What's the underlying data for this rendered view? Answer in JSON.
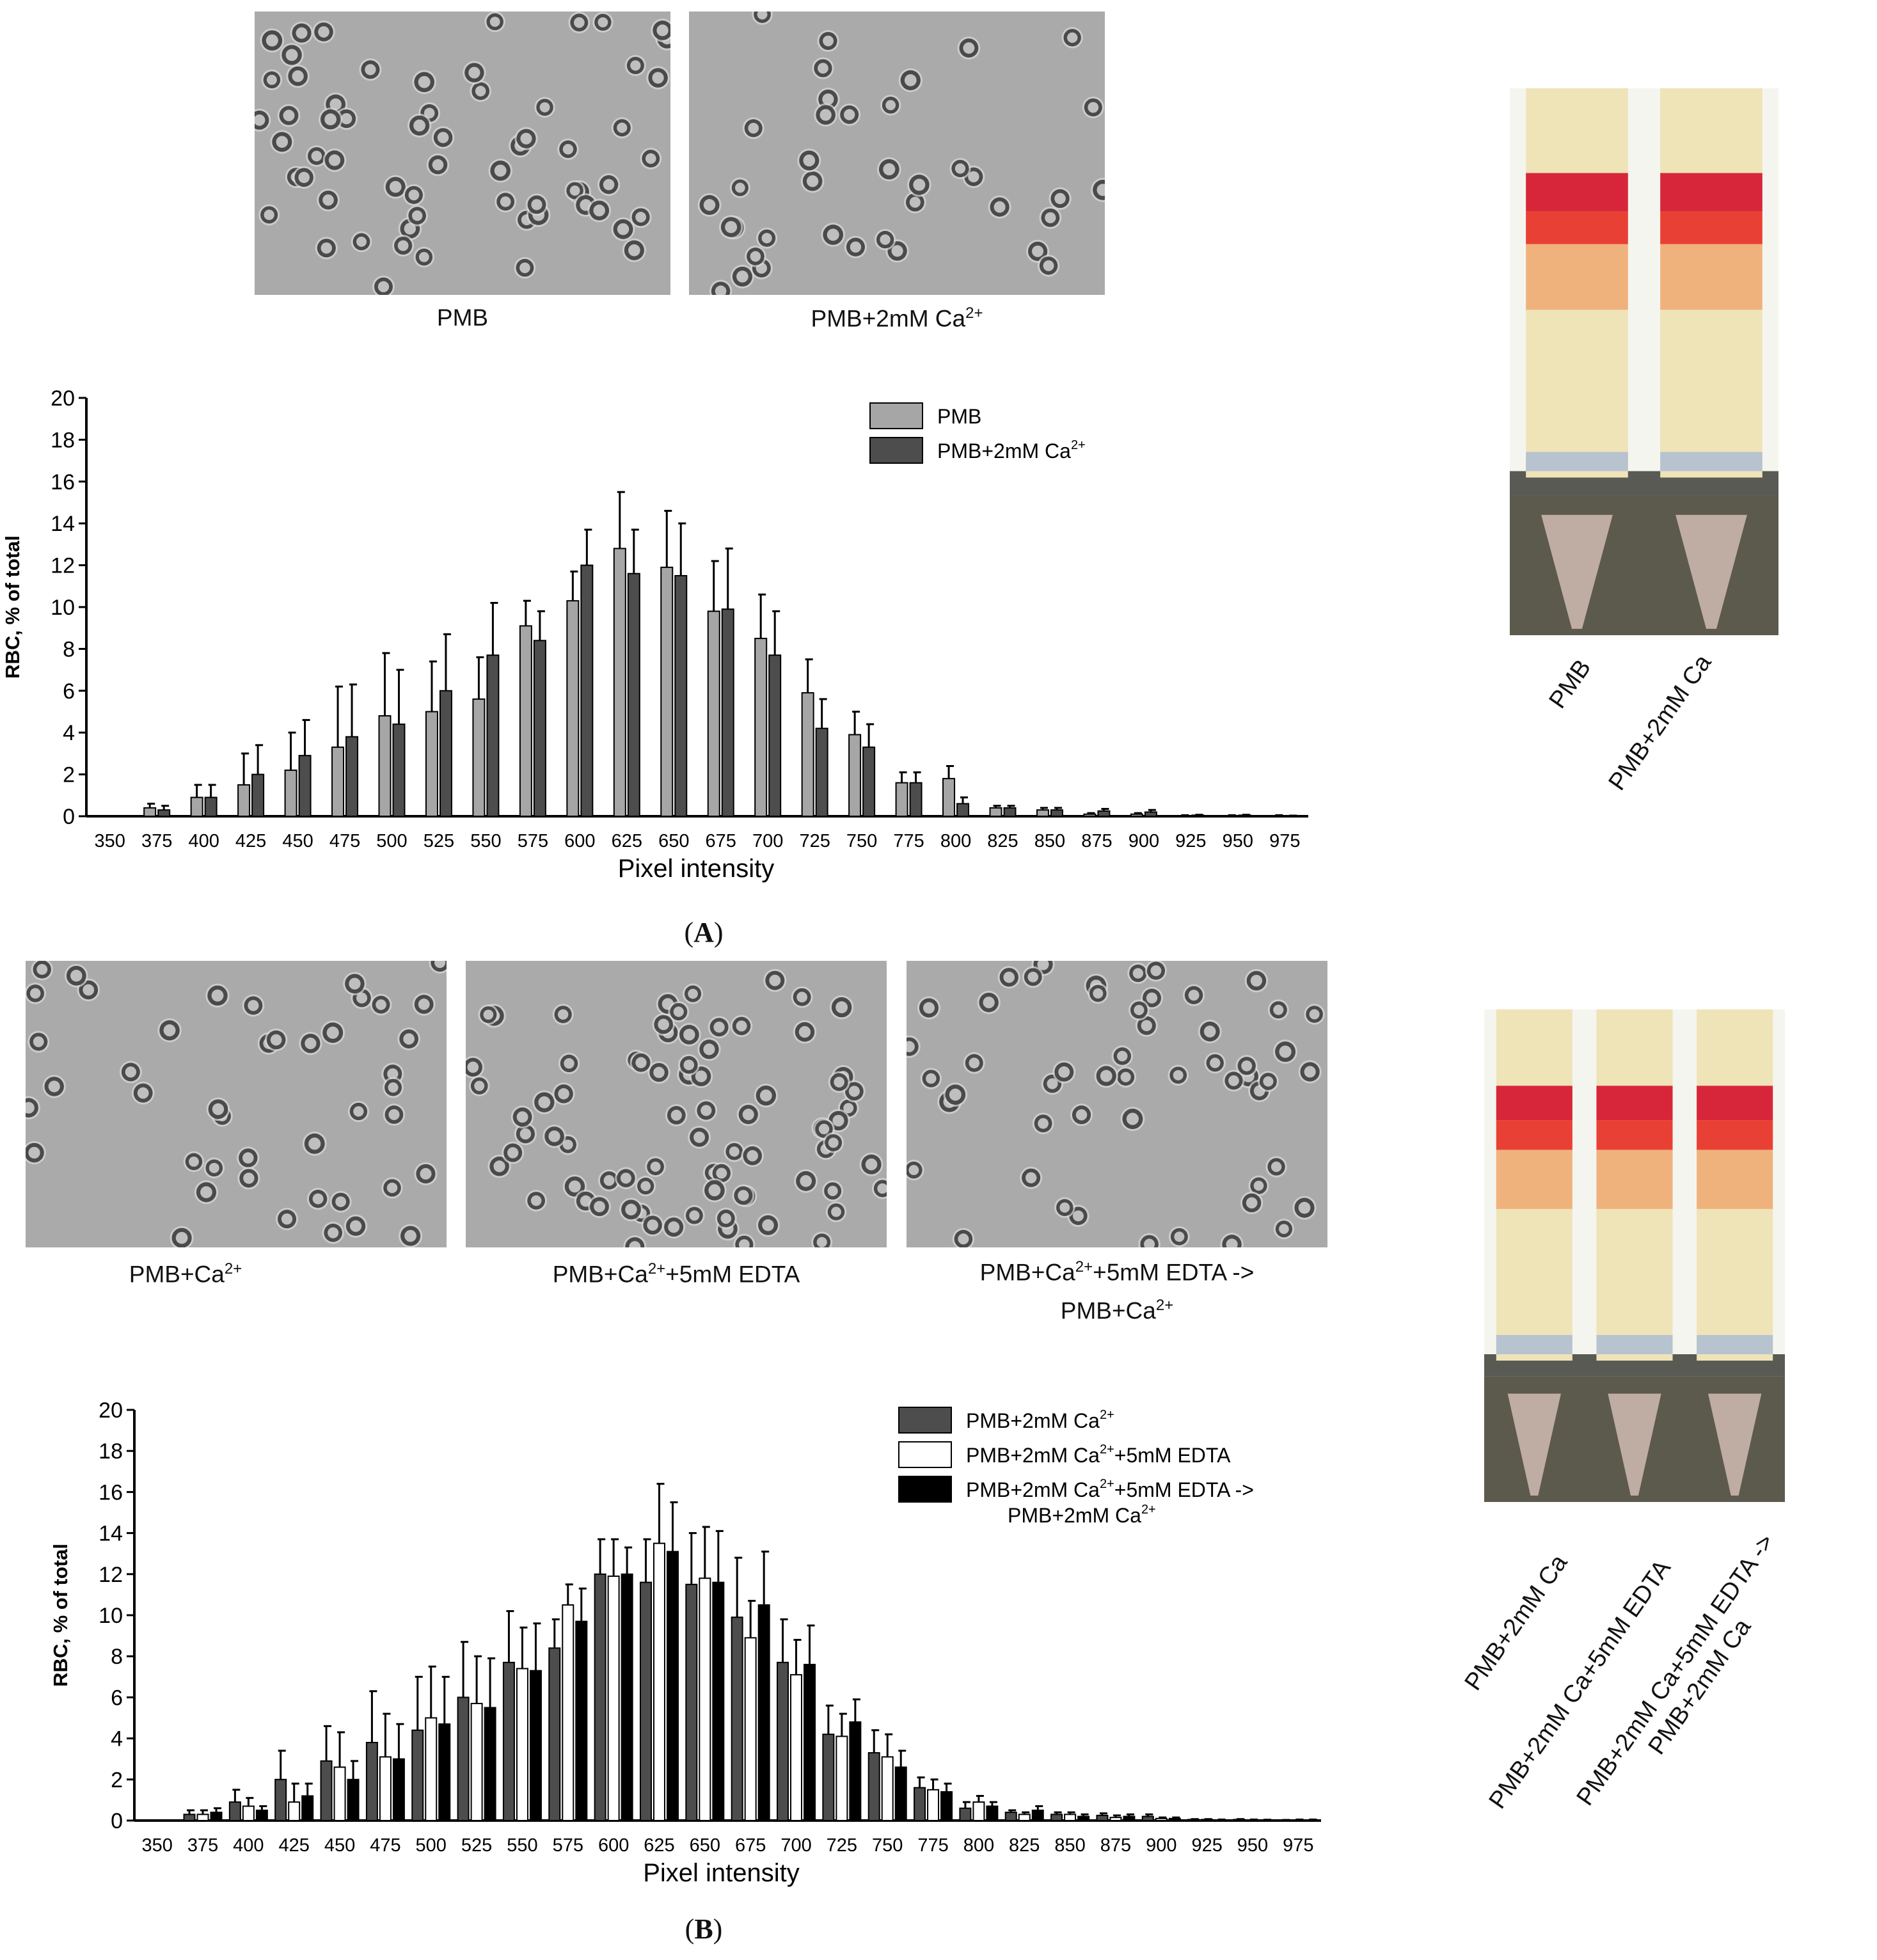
{
  "panel_a": {
    "label": "A",
    "micrographs": [
      {
        "caption": "PMB",
        "cells": 62
      },
      {
        "caption": "PMB+2mM Ca",
        "caption_sup": "2+",
        "cells": 38
      }
    ],
    "tube_labels": [
      "PMB",
      "PMB+2mM Ca"
    ]
  },
  "panel_b": {
    "label": "B",
    "micrographs": [
      {
        "caption": "PMB+Ca",
        "caption_sup": "2+",
        "caption_rest": "",
        "cells": 44
      },
      {
        "caption": "PMB+Ca",
        "caption_sup": "2+",
        "caption_rest": "+5mM EDTA",
        "cells": 78
      },
      {
        "caption": "PMB+Ca",
        "caption_sup": "2+",
        "caption_rest": "+5mM EDTA ->",
        "caption_line2": "PMB+Ca",
        "caption_line2_sup": "2+",
        "cells": 52
      }
    ],
    "tube_labels": [
      "PMB+2mM Ca",
      "PMB+2mM Ca+5mM EDTA",
      "PMB+2mM Ca+5mM EDTA ->\nPMB+2mM Ca"
    ]
  },
  "colors": {
    "light_gray": "#a6a6a6",
    "dark_gray": "#4d4d4d",
    "white": "#ffffff",
    "black": "#000000",
    "background": "#aaaaaa",
    "blood_red": "#e8231e"
  },
  "chart_data": [
    {
      "type": "bar",
      "title": "",
      "xlabel": "Pixel intensity",
      "ylabel": "RBC, % of total",
      "ylim": [
        0,
        20
      ],
      "yticks": [
        0,
        2,
        4,
        6,
        8,
        10,
        12,
        14,
        16,
        18,
        20
      ],
      "legend_position": "top-right",
      "categories": [
        "350",
        "375",
        "400",
        "425",
        "450",
        "475",
        "500",
        "525",
        "550",
        "575",
        "600",
        "625",
        "650",
        "675",
        "700",
        "725",
        "750",
        "775",
        "800",
        "825",
        "850",
        "875",
        "900",
        "925",
        "950",
        "975"
      ],
      "series": [
        {
          "name": "PMB",
          "color": "#a6a6a6",
          "values": [
            0,
            0.4,
            0.9,
            1.5,
            2.2,
            3.3,
            4.8,
            5.0,
            5.6,
            9.1,
            10.3,
            12.8,
            11.9,
            9.8,
            8.5,
            5.9,
            3.9,
            1.6,
            1.8,
            0.4,
            0.3,
            0.1,
            0.1,
            0.03,
            0.03,
            0.03
          ],
          "errors": [
            0,
            0.2,
            0.6,
            1.5,
            1.8,
            2.9,
            3.0,
            2.4,
            2.0,
            1.2,
            1.4,
            2.7,
            2.7,
            2.4,
            2.1,
            1.6,
            1.1,
            0.5,
            0.6,
            0.1,
            0.1,
            0.05,
            0.05,
            0.02,
            0.02,
            0.02
          ]
        },
        {
          "name": "PMB+2mM Ca",
          "name_sup": "2+",
          "color": "#4d4d4d",
          "values": [
            0,
            0.3,
            0.9,
            2.0,
            2.9,
            3.8,
            4.4,
            6.0,
            7.7,
            8.4,
            12.0,
            11.6,
            11.5,
            9.9,
            7.7,
            4.2,
            3.3,
            1.6,
            0.6,
            0.4,
            0.3,
            0.25,
            0.2,
            0.05,
            0.05,
            0.02
          ],
          "errors": [
            0,
            0.2,
            0.6,
            1.4,
            1.7,
            2.5,
            2.6,
            2.7,
            2.5,
            1.4,
            1.7,
            2.1,
            2.5,
            2.9,
            2.1,
            1.4,
            1.1,
            0.5,
            0.3,
            0.1,
            0.1,
            0.1,
            0.1,
            0.02,
            0.02,
            0.01
          ]
        }
      ]
    },
    {
      "type": "bar",
      "title": "",
      "xlabel": "Pixel intensity",
      "ylabel": "RBC, % of total",
      "ylim": [
        0,
        20
      ],
      "yticks": [
        0,
        2,
        4,
        6,
        8,
        10,
        12,
        14,
        16,
        18,
        20
      ],
      "legend_position": "top-right",
      "categories": [
        "350",
        "375",
        "400",
        "425",
        "450",
        "475",
        "500",
        "525",
        "550",
        "575",
        "600",
        "625",
        "650",
        "675",
        "700",
        "725",
        "750",
        "775",
        "800",
        "825",
        "850",
        "875",
        "900",
        "925",
        "950",
        "975"
      ],
      "series": [
        {
          "name": "PMB+2mM Ca",
          "name_sup": "2+",
          "name_rest": "",
          "color": "#4d4d4d",
          "values": [
            0,
            0.3,
            0.9,
            2.0,
            2.9,
            3.8,
            4.4,
            6.0,
            7.7,
            8.4,
            12.0,
            11.6,
            11.5,
            9.9,
            7.7,
            4.2,
            3.3,
            1.6,
            0.6,
            0.4,
            0.3,
            0.25,
            0.2,
            0.05,
            0.05,
            0.02
          ],
          "errors": [
            0,
            0.2,
            0.6,
            1.4,
            1.7,
            2.5,
            2.6,
            2.7,
            2.5,
            1.4,
            1.7,
            2.1,
            2.5,
            2.9,
            2.1,
            1.4,
            1.1,
            0.5,
            0.3,
            0.1,
            0.1,
            0.1,
            0.1,
            0.02,
            0.02,
            0.01
          ]
        },
        {
          "name": "PMB+2mM Ca",
          "name_sup": "2+",
          "name_rest": "+5mM EDTA",
          "color": "#ffffff",
          "values": [
            0,
            0.3,
            0.7,
            0.9,
            2.6,
            3.1,
            5.0,
            5.7,
            7.4,
            10.5,
            11.9,
            13.5,
            11.8,
            8.9,
            7.1,
            4.1,
            3.1,
            1.5,
            0.9,
            0.3,
            0.3,
            0.15,
            0.1,
            0.05,
            0.03,
            0.03
          ],
          "errors": [
            0,
            0.2,
            0.4,
            0.9,
            1.7,
            2.1,
            2.5,
            2.3,
            2.0,
            1.0,
            1.8,
            2.9,
            2.5,
            1.8,
            1.7,
            1.1,
            1.1,
            0.5,
            0.3,
            0.1,
            0.1,
            0.1,
            0.05,
            0.02,
            0.02,
            0.02
          ]
        },
        {
          "name": "PMB+2mM Ca",
          "name_sup": "2+",
          "name_rest": "+5mM EDTA ->",
          "name_line2": "PMB+2mM Ca",
          "name_line2_sup": "2+",
          "color": "#000000",
          "values": [
            0,
            0.4,
            0.5,
            1.2,
            2.0,
            3.0,
            4.7,
            5.5,
            7.3,
            9.7,
            12.0,
            13.1,
            11.6,
            10.5,
            7.6,
            4.8,
            2.6,
            1.4,
            0.7,
            0.5,
            0.2,
            0.2,
            0.1,
            0.03,
            0.02,
            0.03
          ],
          "errors": [
            0,
            0.2,
            0.2,
            0.6,
            0.9,
            1.7,
            2.3,
            2.4,
            2.3,
            1.6,
            1.3,
            2.4,
            2.5,
            2.6,
            1.9,
            1.1,
            0.8,
            0.4,
            0.2,
            0.2,
            0.1,
            0.1,
            0.05,
            0.02,
            0.02,
            0.02
          ]
        }
      ]
    }
  ]
}
